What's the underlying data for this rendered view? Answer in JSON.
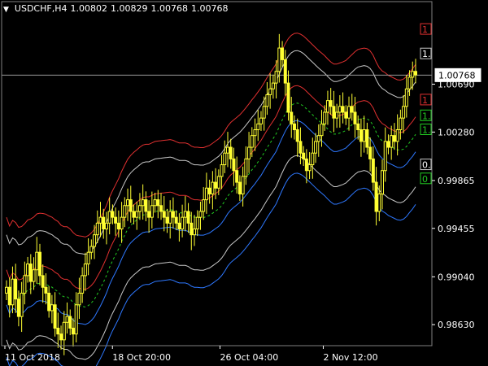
{
  "header": {
    "symbol": "USDCHF,H4",
    "open": "1.00802",
    "high": "1.00829",
    "low": "1.00768",
    "close": "1.00768",
    "menu_icon": "triangle-down-icon"
  },
  "colors": {
    "background": "#000000",
    "candle": "#ffff33",
    "red_band": "#e03030",
    "white_band": "#c8c8c8",
    "blue_band": "#2e78ff",
    "green_mid": "#22cc22",
    "price_line": "#9a9a9a"
  },
  "price_marker": {
    "value": "1.00768",
    "current_price": 1.00768
  },
  "right_labels": [
    {
      "text": "1",
      "color": "#e03030",
      "price": 1.0116
    },
    {
      "text": "1.",
      "color": "#c8c8c8",
      "price": 1.0095
    },
    {
      "text": "1",
      "color": "#e03030",
      "price": 1.00555
    },
    {
      "text": "1.",
      "color": "#22cc22",
      "price": 1.0042
    },
    {
      "text": "1.",
      "color": "#22cc22",
      "price": 1.003
    },
    {
      "text": "0.",
      "color": "#c8c8c8",
      "price": 1.0
    },
    {
      "text": "0",
      "color": "#22cc22",
      "price": 0.9988
    }
  ],
  "chart_data": {
    "type": "candlestick",
    "symbol": "USDCHF,H4",
    "y_ticks": [
      1.0069,
      1.0028,
      0.99865,
      0.99455,
      0.9904,
      0.9863
    ],
    "y_tick_labels": [
      "1.00690",
      "1.00280",
      "0.99865",
      "0.99455",
      "0.99040",
      "0.98630"
    ],
    "x_tick_labels": [
      "11 Oct 2018",
      "18 Oct 20:00",
      "26 Oct 04:00",
      "2 Nov 12:00"
    ],
    "bands": [
      {
        "name": "upper-red",
        "color": "#e03030",
        "offset": 0.006
      },
      {
        "name": "upper-white",
        "color": "#c8c8c8",
        "offset": 0.0045
      },
      {
        "name": "inner-red",
        "color": "#e03030",
        "offset": 0.0015
      },
      {
        "name": "inner-blue",
        "color": "#2e78ff",
        "offset": -0.0015
      },
      {
        "name": "lower-white",
        "color": "#c8c8c8",
        "offset": -0.0045
      },
      {
        "name": "lower-blue",
        "color": "#2e78ff",
        "offset": -0.006
      }
    ],
    "closes": [
      0.9895,
      0.988,
      0.9902,
      0.9885,
      0.987,
      0.989,
      0.9905,
      0.9915,
      0.99,
      0.991,
      0.9925,
      0.9905,
      0.9895,
      0.989,
      0.9875,
      0.988,
      0.986,
      0.9855,
      0.985,
      0.9865,
      0.987,
      0.986,
      0.9855,
      0.988,
      0.989,
      0.9905,
      0.9915,
      0.9925,
      0.993,
      0.994,
      0.995,
      0.9955,
      0.9945,
      0.995,
      0.996,
      0.9955,
      0.995,
      0.9945,
      0.9955,
      0.9965,
      0.997,
      0.996,
      0.9955,
      0.996,
      0.9965,
      0.997,
      0.996,
      0.9955,
      0.9965,
      0.997,
      0.9965,
      0.996,
      0.9955,
      0.995,
      0.996,
      0.9955,
      0.995,
      0.9945,
      0.9955,
      0.996,
      0.995,
      0.994,
      0.9945,
      0.9955,
      0.996,
      0.997,
      0.998,
      0.9975,
      0.9985,
      0.998,
      0.999,
      1.0,
      1.001,
      1.0015,
      1.0005,
      0.9995,
      0.9985,
      0.9975,
      0.999,
      1.0005,
      1.0015,
      1.0025,
      1.003,
      1.0035,
      1.004,
      1.005,
      1.006,
      1.0065,
      1.007,
      1.008,
      1.01,
      1.009,
      1.007,
      1.0045,
      1.0035,
      1.003,
      1.002,
      1.001,
      1.0005,
      0.9995,
      1.0,
      1.001,
      1.002,
      1.0025,
      1.0035,
      1.0045,
      1.0055,
      1.005,
      1.004,
      1.0045,
      1.005,
      1.0045,
      1.004,
      1.005,
      1.0045,
      1.0035,
      1.003,
      1.002,
      1.003,
      1.0015,
      1.0005,
      0.9985,
      0.996,
      0.9975,
      0.9995,
      1.002,
      1.0015,
      1.0025,
      1.002,
      1.003,
      1.004,
      1.005,
      1.0065,
      1.0075,
      1.008,
      1.0077
    ],
    "price_min": 0.9845,
    "price_max": 1.013
  }
}
